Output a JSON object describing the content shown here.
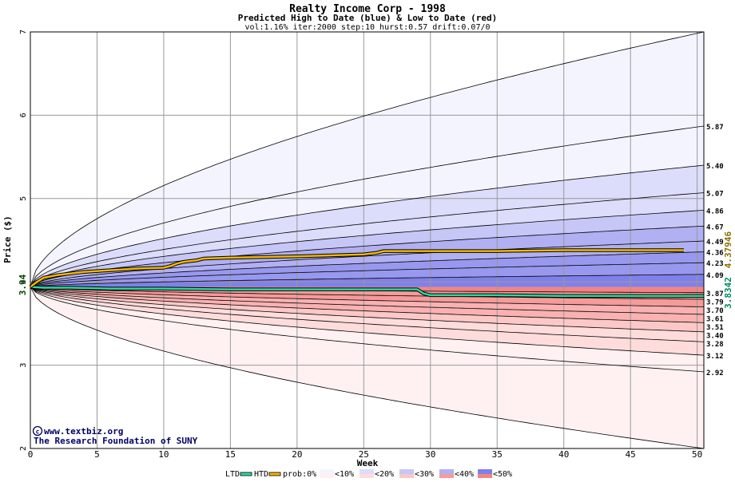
{
  "chart_data": {
    "type": "area",
    "title": "Realty Income Corp - 1998",
    "subtitle": "Predicted High to Date (blue) &  Low to Date (red)",
    "params": "vol:1.16% iter:2000 step:10 hurst:0.57 drift:0.07/0",
    "xlabel": "Week",
    "ylabel": "Price ($)",
    "xlim": [
      0,
      50.5
    ],
    "ylim": [
      2,
      7
    ],
    "xticks": [
      "0",
      "5",
      "10",
      "15",
      "20",
      "25",
      "30",
      "35",
      "40",
      "45",
      "50"
    ],
    "yticks": [
      "2",
      "3",
      "4",
      "5",
      "6",
      "7"
    ],
    "start_label": "3.94",
    "start_value": 3.94,
    "upper_band_labels": [
      "5.87",
      "5.40",
      "5.07",
      "4.86",
      "4.67",
      "4.49",
      "4.36",
      "4.23",
      "4.09"
    ],
    "lower_band_labels": [
      "3.87",
      "3.79",
      "3.70",
      "3.61",
      "3.51",
      "3.40",
      "3.28",
      "3.12",
      "2.92"
    ],
    "upper_band_values": [
      5.87,
      5.4,
      5.07,
      4.86,
      4.67,
      4.49,
      4.36,
      4.23,
      4.09
    ],
    "lower_band_values": [
      3.87,
      3.79,
      3.7,
      3.61,
      3.51,
      3.4,
      3.28,
      3.12,
      2.92
    ],
    "outer_upper_end": 7.0,
    "outer_lower_end": 2.0,
    "htd_label": "4.37946",
    "ltd_label": "3.8342",
    "htd_series": {
      "x": [
        0,
        0.5,
        1,
        2,
        4,
        6,
        8,
        10,
        10.5,
        11,
        11.5,
        12,
        12.5,
        13,
        15,
        18,
        21,
        23,
        25,
        26,
        26.5,
        30,
        35,
        40,
        45,
        49
      ],
      "y": [
        3.94,
        4.0,
        4.05,
        4.08,
        4.12,
        4.14,
        4.16,
        4.17,
        4.19,
        4.22,
        4.24,
        4.25,
        4.26,
        4.28,
        4.29,
        4.3,
        4.31,
        4.32,
        4.33,
        4.35,
        4.37,
        4.37,
        4.37,
        4.38,
        4.38,
        4.38
      ]
    },
    "ltd_series": {
      "x": [
        0,
        1,
        3,
        6,
        10,
        15,
        20,
        25,
        29,
        29.5,
        30,
        35,
        40,
        45,
        50.5
      ],
      "y": [
        3.94,
        3.93,
        3.93,
        3.92,
        3.92,
        3.91,
        3.91,
        3.91,
        3.91,
        3.86,
        3.84,
        3.84,
        3.83,
        3.83,
        3.83
      ]
    },
    "legend": {
      "ltd": "LTD",
      "htd": "HTD",
      "prob": "prob:0%",
      "items": [
        "<10%",
        "<20%",
        "<30%",
        "<40%",
        "<50%"
      ]
    },
    "colors": {
      "htd": "#f2b800",
      "ltd": "#2fd9a0",
      "upper_bands": [
        "#f4f4ff",
        "#dcdcfb",
        "#c6c6f7",
        "#b0b0f2",
        "#9898ee",
        "#8080ea"
      ],
      "lower_bands": [
        "#fff1f1",
        "#ffdcdc",
        "#fcc7c7",
        "#f9b1b1",
        "#f69a9a",
        "#f28484"
      ]
    }
  },
  "watermark": {
    "line1": "www.textbiz.org",
    "line2": "The Research Foundation of SUNY"
  }
}
